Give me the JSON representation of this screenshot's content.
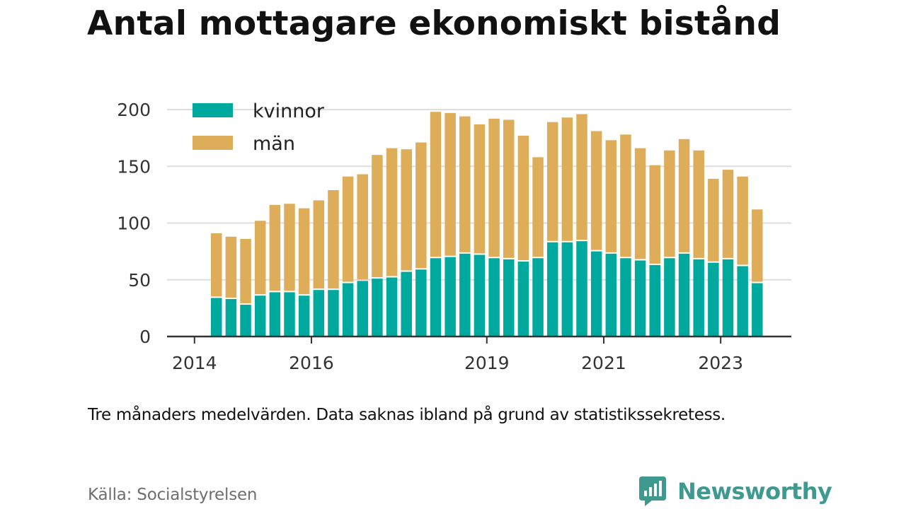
{
  "title": "Antal mottagare ekonomiskt bistånd",
  "note": "Tre månaders medelvärden. Data saknas ibland på grund av statistikssekretess.",
  "source": "Källa: Socialstyrelsen",
  "brand": {
    "name": "Newsworthy",
    "color": "#3e9a8e"
  },
  "chart_data": {
    "type": "bar",
    "stacked": true,
    "x_tick_labels": [
      "2014",
      "2016",
      "2019",
      "2021",
      "2023"
    ],
    "y_ticks": [
      0,
      50,
      100,
      150,
      200
    ],
    "ylim": [
      0,
      200
    ],
    "grid": "horizontal",
    "legend_placement": "top-left",
    "series": [
      {
        "name": "kvinnor",
        "color": "#00a99d",
        "values": [
          34,
          33,
          28,
          36,
          39,
          39,
          36,
          41,
          41,
          47,
          49,
          51,
          52,
          57,
          59,
          69,
          70,
          73,
          72,
          69,
          68,
          66,
          69,
          83,
          83,
          84,
          75,
          73,
          69,
          67,
          63,
          69,
          73,
          68,
          65,
          68,
          62,
          47
        ]
      },
      {
        "name": "män",
        "color": "#ddad5a",
        "values": [
          57,
          55,
          58,
          66,
          77,
          78,
          77,
          79,
          88,
          94,
          94,
          109,
          114,
          108,
          112,
          129,
          127,
          121,
          115,
          123,
          123,
          111,
          89,
          106,
          110,
          112,
          106,
          100,
          109,
          99,
          88,
          95,
          101,
          96,
          74,
          79,
          79,
          65
        ]
      }
    ]
  }
}
